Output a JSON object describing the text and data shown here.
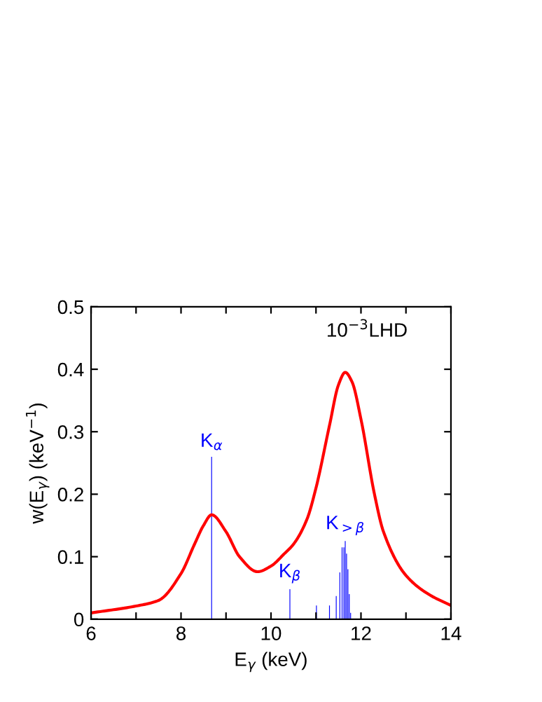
{
  "chart_data": {
    "type": "line",
    "xlabel": "E$_{γ}$ (keV)",
    "ylabel": "w(E$_{γ}$) (keV$^{−1}$)",
    "xlim": [
      6,
      14
    ],
    "ylim": [
      0,
      0.5
    ],
    "xticks": [
      6,
      {
        "value": 7,
        "label": null
      },
      8,
      {
        "value": 9,
        "label": null
      },
      10,
      {
        "value": 11,
        "label": null
      },
      12,
      {
        "value": 13,
        "label": null
      },
      14
    ],
    "yticks": [
      0,
      0.1,
      0.2,
      0.3,
      0.4,
      0.5
    ],
    "grid": false,
    "legend": false,
    "series": [
      {
        "color": "#ff0000",
        "x": [
          6,
          7,
          7.5,
          8,
          8.3,
          8.5,
          8.68,
          9,
          9.3,
          9.7,
          10,
          10.3,
          10.5,
          10.8,
          11,
          11.3,
          11.5,
          11.65,
          11.8,
          12,
          12.3,
          12.5,
          13,
          13.5,
          14
        ],
        "values": [
          0.01,
          0.021,
          0.03,
          0.073,
          0.12,
          0.15,
          0.167,
          0.14,
          0.1,
          0.076,
          0.085,
          0.105,
          0.12,
          0.16,
          0.21,
          0.31,
          0.375,
          0.395,
          0.38,
          0.32,
          0.2,
          0.14,
          0.07,
          0.04,
          0.022
        ]
      },
      {
        "type": "bar",
        "color": "#0000ff",
        "x": [
          8.68,
          10.42,
          11.01,
          11.3,
          11.45,
          11.53,
          11.58,
          11.62,
          11.65,
          11.68,
          11.71,
          11.74,
          11.77
        ],
        "values": [
          0.26,
          0.048,
          0.022,
          0.022,
          0.037,
          0.075,
          0.115,
          0.115,
          0.125,
          0.105,
          0.08,
          0.04,
          0.01
        ]
      }
    ],
    "annotations": [
      {
        "text": "K$_{α}$",
        "x": 8.68,
        "y": 0.26
      },
      {
        "text": "K$_{β}$",
        "x": 10.42,
        "y": 0.048
      },
      {
        "text": "K$_{>β}$",
        "x": 11.65,
        "y": 0.125
      },
      "10$^{−3}$LHD"
    ]
  }
}
